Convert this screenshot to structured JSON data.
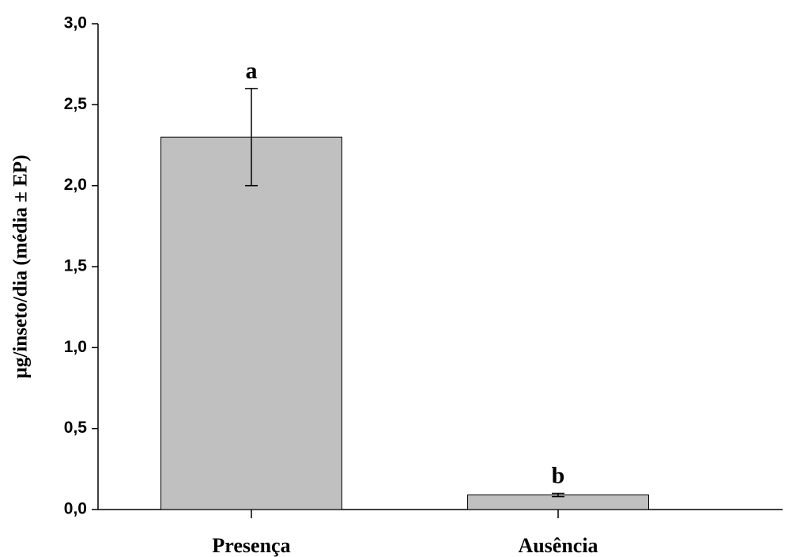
{
  "chart_data": {
    "type": "bar",
    "y_label": "µg/inseto/dia (média ± EP)",
    "categories": [
      "Presença",
      "Ausência"
    ],
    "values": [
      2.3,
      0.09
    ],
    "errors": [
      0.3,
      0.01
    ],
    "annotations": [
      "a",
      "b"
    ],
    "color": "#c0c0c0",
    "ylim": [
      0,
      3
    ],
    "yticks": [
      {
        "value": 0,
        "label": "0,0"
      },
      {
        "value": 0.5,
        "label": "0,5"
      },
      {
        "value": 1,
        "label": "1,0"
      },
      {
        "value": 1.5,
        "label": "1,5"
      },
      {
        "value": 2,
        "label": "2,0"
      },
      {
        "value": 2.5,
        "label": "2,5"
      },
      {
        "value": 3,
        "label": "3,0"
      }
    ]
  }
}
